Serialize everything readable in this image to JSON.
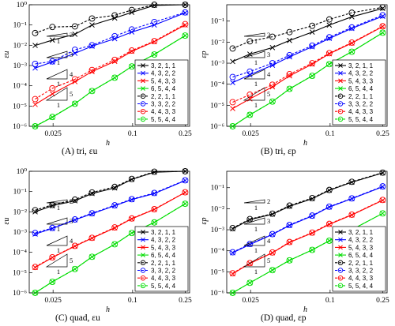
{
  "captions": [
    "(A) tri, εu",
    "(B) tri, εp",
    "(C) quad, εu",
    "(D) quad, εp"
  ],
  "chart_data": [
    {
      "type": "line",
      "panel": "(A) tri, εu",
      "xlabel": "h",
      "ylabel": "εu",
      "xscale": "log",
      "yscale": "log",
      "xlim": [
        0.0165,
        0.27
      ],
      "ylim": [
        1e-06,
        1
      ],
      "xticks": [
        "0.025",
        "0.1",
        "0.25"
      ],
      "yticks": [
        "10⁻⁶",
        "10⁻⁵",
        "10⁻⁴",
        "10⁻³",
        "10⁻²",
        "10⁻¹",
        "10⁰"
      ],
      "legend_position": "bottom-right",
      "x": [
        0.0183,
        0.0247,
        0.0366,
        0.0493,
        0.0732,
        0.0986,
        0.146,
        0.25
      ],
      "series": [
        {
          "name": "3, 2, 1, 1",
          "color": "#000000",
          "marker": "x",
          "dash": false,
          "values": [
            0.0098,
            0.018,
            0.035,
            0.1,
            0.22,
            0.42,
            0.93,
            1.0
          ]
        },
        {
          "name": "4, 3, 2, 2",
          "color": "#0000ff",
          "marker": "x",
          "dash": false,
          "values": [
            0.00075,
            0.0015,
            0.004,
            0.009,
            0.021,
            0.045,
            0.1,
            0.4
          ]
        },
        {
          "name": "5, 4, 3, 3",
          "color": "#ff0000",
          "marker": "x",
          "dash": false,
          "values": [
            1.2e-05,
            4e-05,
            0.00016,
            0.0005,
            0.0016,
            0.005,
            0.015,
            0.1
          ]
        },
        {
          "name": "6, 5, 4, 4",
          "color": "#00dd00",
          "marker": "x",
          "dash": false,
          "values": [
            7e-07,
            2.8e-06,
            1.3e-05,
            5.5e-05,
            0.00025,
            0.0009,
            0.0035,
            0.03
          ]
        },
        {
          "name": "2, 2, 1, 1",
          "color": "#000000",
          "marker": "o",
          "dash": true,
          "values": [
            0.04,
            0.08,
            0.085,
            0.21,
            0.3,
            0.55,
            1.0,
            1.0
          ]
        },
        {
          "name": "3, 3, 2, 2",
          "color": "#0000ff",
          "marker": "o",
          "dash": true,
          "values": [
            0.0012,
            0.0016,
            0.006,
            0.01,
            0.028,
            0.06,
            0.14,
            0.42
          ]
        },
        {
          "name": "4, 4, 3, 3",
          "color": "#ff0000",
          "marker": "o",
          "dash": true,
          "values": [
            2.2e-05,
            7.5e-05,
            0.00021,
            0.0006,
            0.0019,
            0.0055,
            0.016,
            0.11
          ]
        },
        {
          "name": "5, 5, 4, 4",
          "color": "#00dd00",
          "marker": "o",
          "dash": true,
          "values": [
            6e-07,
            2.9e-06,
            1.3e-05,
            5.5e-05,
            0.00025,
            0.0009,
            0.0035,
            0.03
          ]
        }
      ],
      "slopes": [
        "2",
        "3",
        "4",
        "5"
      ]
    },
    {
      "type": "line",
      "panel": "(B) tri, εp",
      "xlabel": "h",
      "ylabel": "εp",
      "xscale": "log",
      "yscale": "log",
      "xlim": [
        0.0165,
        0.27
      ],
      "ylim": [
        1e-06,
        0.6
      ],
      "xticks": [
        "0.025",
        "0.1",
        "0.25"
      ],
      "yticks": [
        "10⁻⁶",
        "10⁻⁵",
        "10⁻⁴",
        "10⁻³",
        "10⁻²",
        "10⁻¹"
      ],
      "legend_position": "bottom-right",
      "x": [
        0.0183,
        0.0247,
        0.0366,
        0.0493,
        0.0732,
        0.0986,
        0.146,
        0.25
      ],
      "series": [
        {
          "name": "3, 2, 1, 1",
          "color": "#000000",
          "marker": "x",
          "dash": false,
          "values": [
            0.0012,
            0.0027,
            0.0055,
            0.012,
            0.03,
            0.065,
            0.16,
            0.4
          ]
        },
        {
          "name": "4, 3, 2, 2",
          "color": "#0000ff",
          "marker": "x",
          "dash": false,
          "values": [
            0.00012,
            0.00028,
            0.0008,
            0.002,
            0.006,
            0.015,
            0.045,
            0.17
          ]
        },
        {
          "name": "5, 4, 3, 3",
          "color": "#ff0000",
          "marker": "x",
          "dash": false,
          "values": [
            7e-06,
            2e-05,
            7.5e-05,
            0.00025,
            0.0009,
            0.0028,
            0.009,
            0.055
          ]
        },
        {
          "name": "6, 5, 4, 4",
          "color": "#00dd00",
          "marker": "x",
          "dash": false,
          "values": [
            9e-07,
            3.5e-06,
            1.5e-05,
            6e-05,
            0.00025,
            0.0009,
            0.0035,
            0.028
          ]
        },
        {
          "name": "2, 2, 1, 1",
          "color": "#000000",
          "marker": "o",
          "dash": true,
          "values": [
            0.005,
            0.011,
            0.018,
            0.03,
            0.06,
            0.12,
            0.25,
            0.45
          ]
        },
        {
          "name": "3, 3, 2, 2",
          "color": "#0000ff",
          "marker": "o",
          "dash": true,
          "values": [
            0.00022,
            0.0004,
            0.001,
            0.0024,
            0.0068,
            0.017,
            0.05,
            0.19
          ]
        },
        {
          "name": "4, 4, 3, 3",
          "color": "#ff0000",
          "marker": "o",
          "dash": true,
          "values": [
            1.4e-05,
            3.2e-05,
            9.5e-05,
            0.0003,
            0.001,
            0.003,
            0.0095,
            0.057
          ]
        },
        {
          "name": "5, 5, 4, 4",
          "color": "#00dd00",
          "marker": "o",
          "dash": true,
          "values": [
            9e-07,
            3.5e-06,
            1.5e-05,
            6e-05,
            0.00025,
            0.0009,
            0.0035,
            0.028
          ]
        }
      ],
      "slopes": [
        "2",
        "3",
        "4",
        "5"
      ]
    },
    {
      "type": "line",
      "panel": "(C) quad, εu",
      "xlabel": "h",
      "ylabel": "εu",
      "xscale": "log",
      "yscale": "log",
      "xlim": [
        0.0165,
        0.27
      ],
      "ylim": [
        1e-06,
        1
      ],
      "xticks": [
        "0.025",
        "0.1",
        "0.25"
      ],
      "yticks": [
        "10⁻⁶",
        "10⁻⁵",
        "10⁻⁴",
        "10⁻³",
        "10⁻²",
        "10⁻¹",
        "10⁰"
      ],
      "legend_position": "bottom-right",
      "x": [
        0.0183,
        0.0247,
        0.0366,
        0.0493,
        0.0732,
        0.0986,
        0.146,
        0.25
      ],
      "series": [
        {
          "name": "3, 2, 1, 1",
          "color": "#000000",
          "marker": "x",
          "dash": false,
          "values": [
            0.01,
            0.02,
            0.035,
            0.08,
            0.15,
            0.4,
            0.9,
            1.0
          ]
        },
        {
          "name": "4, 3, 2, 2",
          "color": "#0000ff",
          "marker": "x",
          "dash": false,
          "values": [
            0.0008,
            0.0015,
            0.004,
            0.008,
            0.02,
            0.04,
            0.08,
            0.35
          ]
        },
        {
          "name": "5, 4, 3, 3",
          "color": "#ff0000",
          "marker": "x",
          "dash": false,
          "values": [
            1.8e-05,
            5.5e-05,
            0.0002,
            0.0005,
            0.0016,
            0.0045,
            0.013,
            0.09
          ]
        },
        {
          "name": "6, 5, 4, 4",
          "color": "#00dd00",
          "marker": "x",
          "dash": false,
          "values": [
            9e-07,
            3.5e-06,
            1.5e-05,
            6e-05,
            0.00025,
            0.0009,
            0.003,
            0.025
          ]
        },
        {
          "name": "2, 2, 1, 1",
          "color": "#000000",
          "marker": "o",
          "dash": true,
          "values": [
            0.012,
            0.022,
            0.04,
            0.09,
            0.17,
            0.42,
            0.95,
            1.0
          ]
        },
        {
          "name": "3, 3, 2, 2",
          "color": "#0000ff",
          "marker": "o",
          "dash": true,
          "values": [
            0.0009,
            0.0016,
            0.0042,
            0.0085,
            0.021,
            0.042,
            0.085,
            0.36
          ]
        },
        {
          "name": "4, 4, 3, 3",
          "color": "#ff0000",
          "marker": "o",
          "dash": true,
          "values": [
            1.9e-05,
            5.7e-05,
            0.00021,
            0.00052,
            0.0017,
            0.0047,
            0.0135,
            0.092
          ]
        },
        {
          "name": "5, 5, 4, 4",
          "color": "#00dd00",
          "marker": "o",
          "dash": true,
          "values": [
            9e-07,
            3.5e-06,
            1.5e-05,
            6e-05,
            0.00025,
            0.0009,
            0.003,
            0.025
          ]
        }
      ],
      "slopes": [
        "2",
        "3",
        "4",
        "5"
      ]
    },
    {
      "type": "line",
      "panel": "(D) quad, εp",
      "xlabel": "h",
      "ylabel": "εp",
      "xscale": "log",
      "yscale": "log",
      "xlim": [
        0.0165,
        0.27
      ],
      "ylim": [
        1e-06,
        0.6
      ],
      "xticks": [
        "0.025",
        "0.1",
        "0.25"
      ],
      "yticks": [
        "10⁻⁶",
        "10⁻⁵",
        "10⁻⁴",
        "10⁻³",
        "10⁻²",
        "10⁻¹"
      ],
      "legend_position": "bottom-right",
      "x": [
        0.0183,
        0.0247,
        0.0366,
        0.0493,
        0.0732,
        0.0986,
        0.146,
        0.25
      ],
      "series": [
        {
          "name": "3, 2, 1, 1",
          "color": "#000000",
          "marker": "x",
          "dash": false,
          "values": [
            0.0011,
            0.003,
            0.0055,
            0.013,
            0.03,
            0.075,
            0.18,
            0.5
          ]
        },
        {
          "name": "4, 3, 2, 2",
          "color": "#0000ff",
          "marker": "x",
          "dash": false,
          "values": [
            8e-05,
            0.0002,
            0.0006,
            0.0016,
            0.0045,
            0.012,
            0.03,
            0.11
          ]
        },
        {
          "name": "5, 4, 3, 3",
          "color": "#ff0000",
          "marker": "x",
          "dash": false,
          "values": [
            8e-06,
            2.5e-05,
            8e-05,
            0.00025,
            0.0007,
            0.0018,
            0.005,
            0.025
          ]
        },
        {
          "name": "6, 5, 4, 4",
          "color": "#00dd00",
          "marker": "x",
          "dash": false,
          "values": [
            1e-06,
            3e-06,
            1.2e-05,
            3.5e-05,
            0.00011,
            0.0003,
            0.001,
            0.006
          ]
        },
        {
          "name": "2, 2, 1, 1",
          "color": "#000000",
          "marker": "o",
          "dash": true,
          "values": [
            0.0012,
            0.0032,
            0.0058,
            0.014,
            0.032,
            0.078,
            0.19,
            0.52
          ]
        },
        {
          "name": "3, 3, 2, 2",
          "color": "#0000ff",
          "marker": "o",
          "dash": true,
          "values": [
            8.5e-05,
            0.00021,
            0.00062,
            0.0017,
            0.0047,
            0.0125,
            0.031,
            0.115
          ]
        },
        {
          "name": "4, 4, 3, 3",
          "color": "#ff0000",
          "marker": "o",
          "dash": true,
          "values": [
            8.5e-06,
            2.6e-05,
            8.3e-05,
            0.00026,
            0.00073,
            0.0019,
            0.0052,
            0.026
          ]
        },
        {
          "name": "5, 5, 4, 4",
          "color": "#00dd00",
          "marker": "o",
          "dash": true,
          "values": [
            1e-06,
            3e-06,
            1.2e-05,
            3.5e-05,
            0.00011,
            0.0003,
            0.001,
            0.006
          ]
        }
      ],
      "slopes": [
        "2",
        "3",
        "4",
        "5"
      ]
    }
  ]
}
